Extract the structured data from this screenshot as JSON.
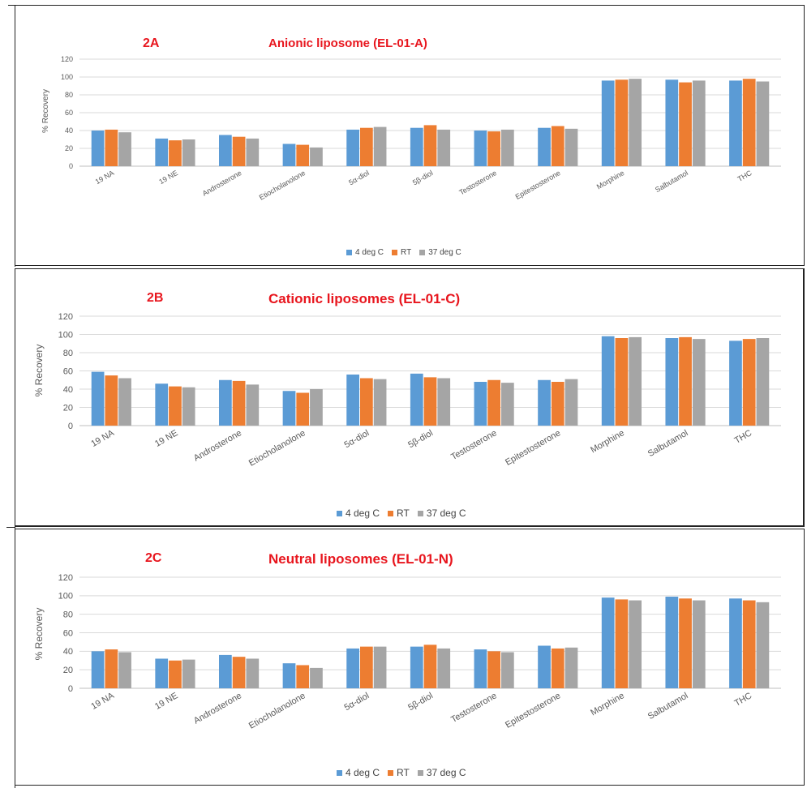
{
  "colors": {
    "series": [
      "#5b9bd5",
      "#ed7d31",
      "#a5a5a5"
    ],
    "title": "#e8161e",
    "grid": "#d9d9d9",
    "axis": "#595959"
  },
  "chart_data": [
    {
      "type": "bar",
      "panel_label": "2A",
      "title": "Anionic liposome (EL-01-A)",
      "ylabel": "% Recovery",
      "ylim": [
        0,
        120
      ],
      "yticks": [
        0,
        20,
        40,
        60,
        80,
        100,
        120
      ],
      "grid": true,
      "legend": "bottom",
      "categories": [
        "19 NA",
        "19 NE",
        "Androsterone",
        "Etiocholanolone",
        "5α-diol",
        "5β-diol",
        "Testosterone",
        "Epitestosterone",
        "Morphine",
        "Salbutamol",
        "THC"
      ],
      "series": [
        {
          "name": "4 deg C",
          "values": [
            40,
            31,
            35,
            25,
            41,
            43,
            40,
            43,
            96,
            97,
            96
          ]
        },
        {
          "name": "RT",
          "values": [
            41,
            29,
            33,
            24,
            43,
            46,
            39,
            45,
            97,
            94,
            98
          ]
        },
        {
          "name": "37 deg C",
          "values": [
            38,
            30,
            31,
            21,
            44,
            41,
            41,
            42,
            98,
            96,
            95
          ]
        }
      ]
    },
    {
      "type": "bar",
      "panel_label": "2B",
      "title": "Cationic liposomes (EL-01-C)",
      "ylabel": "% Recovery",
      "ylim": [
        0,
        120
      ],
      "yticks": [
        0,
        20,
        40,
        60,
        80,
        100,
        120
      ],
      "grid": true,
      "legend": "bottom",
      "categories": [
        "19 NA",
        "19 NE",
        "Androsterone",
        "Etiocholanolone",
        "5α-diol",
        "5β-diol",
        "Testosterone",
        "Epitestosterone",
        "Morphine",
        "Salbutamol",
        "THC"
      ],
      "series": [
        {
          "name": "4 deg C",
          "values": [
            59,
            46,
            50,
            38,
            56,
            57,
            48,
            50,
            98,
            96,
            93
          ]
        },
        {
          "name": "RT",
          "values": [
            55,
            43,
            49,
            36,
            52,
            53,
            50,
            48,
            96,
            97,
            95
          ]
        },
        {
          "name": "37 deg C",
          "values": [
            52,
            42,
            45,
            40,
            51,
            52,
            47,
            51,
            97,
            95,
            96
          ]
        }
      ]
    },
    {
      "type": "bar",
      "panel_label": "2C",
      "title": "Neutral liposomes (EL-01-N)",
      "ylabel": "% Recovery",
      "ylim": [
        0,
        120
      ],
      "yticks": [
        0,
        20,
        40,
        60,
        80,
        100,
        120
      ],
      "grid": true,
      "legend": "bottom",
      "categories": [
        "19 NA",
        "19 NE",
        "Androsterone",
        "Etiocholanolone",
        "5α-diol",
        "5β-diol",
        "Testosterone",
        "Epitestosterone",
        "Morphine",
        "Salbutamol",
        "THC"
      ],
      "series": [
        {
          "name": "4 deg C",
          "values": [
            40,
            32,
            36,
            27,
            43,
            45,
            42,
            46,
            98,
            99,
            97
          ]
        },
        {
          "name": "RT",
          "values": [
            42,
            30,
            34,
            25,
            45,
            47,
            40,
            43,
            96,
            97,
            95
          ]
        },
        {
          "name": "37 deg C",
          "values": [
            39,
            31,
            32,
            22,
            45,
            43,
            39,
            44,
            95,
            95,
            93
          ]
        }
      ]
    }
  ]
}
